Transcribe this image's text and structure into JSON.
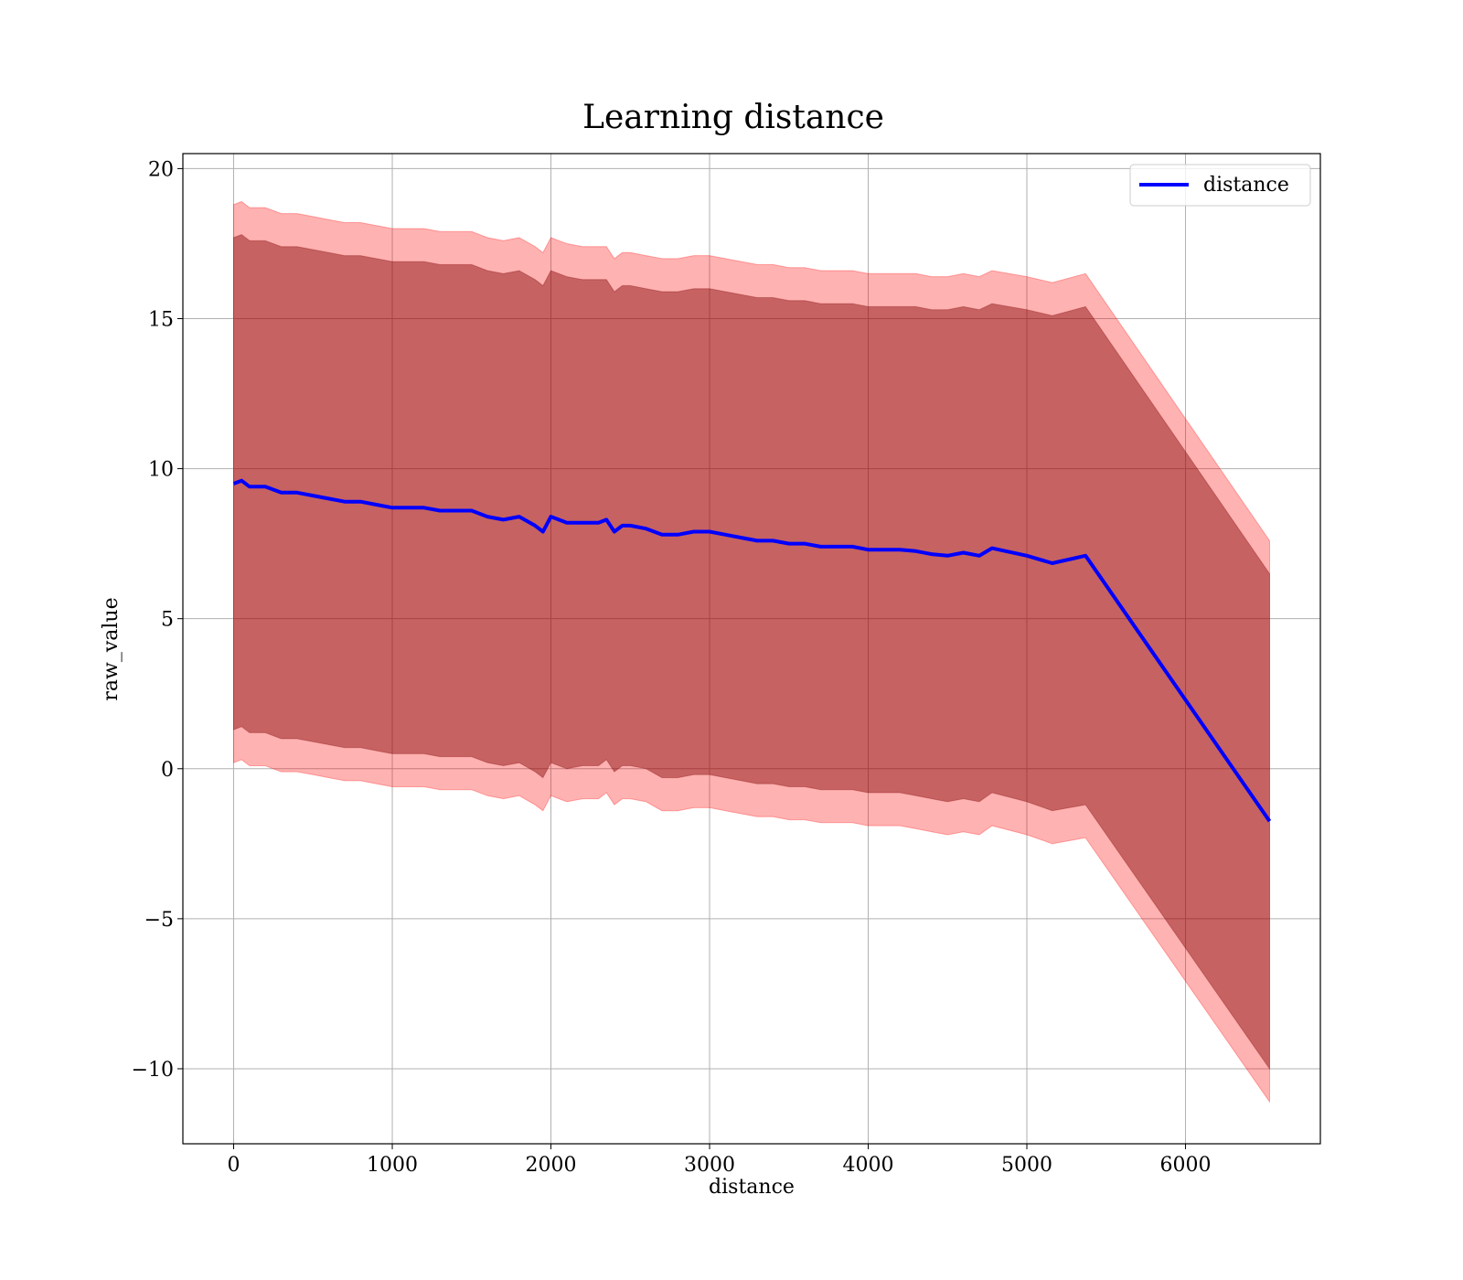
{
  "chart_data": {
    "type": "line",
    "title": "Learning distance",
    "xlabel": "distance",
    "ylabel": "raw_value",
    "xlim": [
      -320,
      6850
    ],
    "ylim": [
      -12.5,
      20.5
    ],
    "xticks": [
      0,
      1000,
      2000,
      3000,
      4000,
      5000,
      6000
    ],
    "yticks": [
      -10,
      -5,
      0,
      5,
      10,
      15,
      20
    ],
    "xtick_labels": [
      "0",
      "1000",
      "2000",
      "3000",
      "4000",
      "5000",
      "6000"
    ],
    "ytick_labels": [
      "−10",
      "−5",
      "0",
      "5",
      "10",
      "15",
      "20"
    ],
    "grid": true,
    "legend_position": "top-right",
    "colors": {
      "line": "#0000ff",
      "band": "#ff0000",
      "overlap_band": "#800000"
    },
    "series": [
      {
        "name": "distance",
        "x": [
          0,
          50,
          100,
          150,
          200,
          300,
          400,
          500,
          600,
          700,
          800,
          900,
          1000,
          1100,
          1200,
          1300,
          1400,
          1500,
          1600,
          1700,
          1800,
          1900,
          1950,
          2000,
          2050,
          2100,
          2200,
          2300,
          2350,
          2400,
          2450,
          2500,
          2600,
          2700,
          2800,
          2900,
          3000,
          3100,
          3200,
          3300,
          3400,
          3500,
          3600,
          3700,
          3800,
          3900,
          4000,
          4100,
          4200,
          4300,
          4400,
          4500,
          4600,
          4700,
          4780,
          5000,
          5160,
          5370,
          6530
        ],
        "y": [
          9.5,
          9.6,
          9.4,
          9.4,
          9.4,
          9.2,
          9.2,
          9.1,
          9.0,
          8.9,
          8.9,
          8.8,
          8.7,
          8.7,
          8.7,
          8.6,
          8.6,
          8.6,
          8.4,
          8.3,
          8.4,
          8.1,
          7.9,
          8.4,
          8.3,
          8.2,
          8.2,
          8.2,
          8.3,
          7.9,
          8.1,
          8.1,
          8.0,
          7.8,
          7.8,
          7.9,
          7.9,
          7.8,
          7.7,
          7.6,
          7.6,
          7.5,
          7.5,
          7.4,
          7.4,
          7.4,
          7.3,
          7.3,
          7.3,
          7.25,
          7.15,
          7.1,
          7.2,
          7.1,
          7.35,
          7.1,
          6.85,
          7.1,
          -1.75
        ],
        "band_outer_upper": [
          18.8,
          18.9,
          18.7,
          18.7,
          18.7,
          18.5,
          18.5,
          18.4,
          18.3,
          18.2,
          18.2,
          18.1,
          18.0,
          18.0,
          18.0,
          17.9,
          17.9,
          17.9,
          17.7,
          17.6,
          17.7,
          17.4,
          17.2,
          17.7,
          17.6,
          17.5,
          17.4,
          17.4,
          17.4,
          17.0,
          17.2,
          17.2,
          17.1,
          17.0,
          17.0,
          17.1,
          17.1,
          17.0,
          16.9,
          16.8,
          16.8,
          16.7,
          16.7,
          16.6,
          16.6,
          16.6,
          16.5,
          16.5,
          16.5,
          16.5,
          16.4,
          16.4,
          16.5,
          16.4,
          16.6,
          16.4,
          16.2,
          16.5,
          7.6
        ],
        "band_outer_lower": [
          0.2,
          0.3,
          0.1,
          0.1,
          0.1,
          -0.1,
          -0.1,
          -0.2,
          -0.3,
          -0.4,
          -0.4,
          -0.5,
          -0.6,
          -0.6,
          -0.6,
          -0.7,
          -0.7,
          -0.7,
          -0.9,
          -1.0,
          -0.9,
          -1.2,
          -1.4,
          -0.9,
          -1.0,
          -1.1,
          -1.0,
          -1.0,
          -0.8,
          -1.2,
          -1.0,
          -1.0,
          -1.1,
          -1.4,
          -1.4,
          -1.3,
          -1.3,
          -1.4,
          -1.5,
          -1.6,
          -1.6,
          -1.7,
          -1.7,
          -1.8,
          -1.8,
          -1.8,
          -1.9,
          -1.9,
          -1.9,
          -2.0,
          -2.1,
          -2.2,
          -2.1,
          -2.2,
          -1.9,
          -2.2,
          -2.5,
          -2.3,
          -11.1
        ],
        "band_inner_upper": [
          17.7,
          17.8,
          17.6,
          17.6,
          17.6,
          17.4,
          17.4,
          17.3,
          17.2,
          17.1,
          17.1,
          17.0,
          16.9,
          16.9,
          16.9,
          16.8,
          16.8,
          16.8,
          16.6,
          16.5,
          16.6,
          16.3,
          16.1,
          16.6,
          16.5,
          16.4,
          16.3,
          16.3,
          16.3,
          15.9,
          16.1,
          16.1,
          16.0,
          15.9,
          15.9,
          16.0,
          16.0,
          15.9,
          15.8,
          15.7,
          15.7,
          15.6,
          15.6,
          15.5,
          15.5,
          15.5,
          15.4,
          15.4,
          15.4,
          15.4,
          15.3,
          15.3,
          15.4,
          15.3,
          15.5,
          15.3,
          15.1,
          15.4,
          6.5
        ],
        "band_inner_lower": [
          1.3,
          1.4,
          1.2,
          1.2,
          1.2,
          1.0,
          1.0,
          0.9,
          0.8,
          0.7,
          0.7,
          0.6,
          0.5,
          0.5,
          0.5,
          0.4,
          0.4,
          0.4,
          0.2,
          0.1,
          0.2,
          -0.1,
          -0.3,
          0.2,
          0.1,
          0.0,
          0.1,
          0.1,
          0.3,
          -0.1,
          0.1,
          0.1,
          0.0,
          -0.3,
          -0.3,
          -0.2,
          -0.2,
          -0.3,
          -0.4,
          -0.5,
          -0.5,
          -0.6,
          -0.6,
          -0.7,
          -0.7,
          -0.7,
          -0.8,
          -0.8,
          -0.8,
          -0.9,
          -1.0,
          -1.1,
          -1.0,
          -1.1,
          -0.8,
          -1.1,
          -1.4,
          -1.2,
          -10.0
        ]
      }
    ]
  }
}
